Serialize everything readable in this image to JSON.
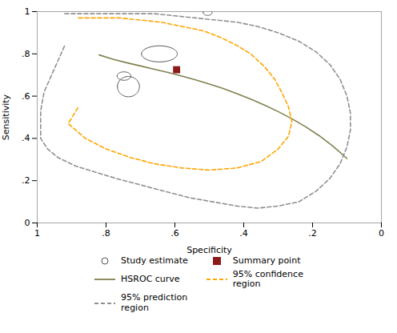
{
  "chart_data": {
    "type": "hsroc",
    "xlabel": "Specificity",
    "ylabel": "Sensitivity",
    "xlim": [
      1.0,
      0.0
    ],
    "ylim": [
      0.0,
      1.0
    ],
    "xticks": [
      1,
      {
        "value": 0.8,
        "label": ".8"
      },
      {
        "value": 0.6,
        "label": ".6"
      },
      {
        "value": 0.4,
        "label": ".4"
      },
      {
        "value": 0.2,
        "label": ".2"
      },
      0
    ],
    "yticks": [
      0,
      {
        "value": 0.2,
        "label": ".2"
      },
      {
        "value": 0.4,
        "label": ".4"
      },
      {
        "value": 0.6,
        "label": ".6"
      },
      {
        "value": 0.8,
        "label": ".8"
      },
      1
    ],
    "grid": false,
    "legend": "bottom",
    "series": [
      {
        "name": "Study estimate",
        "type": "ellipse",
        "marker": "circle",
        "color": "#555555",
        "x": [
          0.505,
          0.645,
          0.735,
          0.748
        ],
        "y": [
          0.995,
          0.8,
          0.645,
          0.695
        ],
        "rx": [
          0.013,
          0.052,
          0.032,
          0.02
        ],
        "ry": [
          0.013,
          0.038,
          0.048,
          0.02
        ]
      },
      {
        "name": "Summary point",
        "type": "scatter",
        "marker": "square",
        "color": "#8B1A1A",
        "x": [
          0.595
        ],
        "y": [
          0.725
        ]
      },
      {
        "name": "HSROC curve",
        "type": "line",
        "line_style": "solid",
        "color": "#808050",
        "x": [
          0.82,
          0.78,
          0.74,
          0.7,
          0.66,
          0.62,
          0.58,
          0.54,
          0.5,
          0.46,
          0.42,
          0.38,
          0.34,
          0.3,
          0.26,
          0.22,
          0.18,
          0.14,
          0.1
        ],
        "y": [
          0.795,
          0.775,
          0.758,
          0.743,
          0.727,
          0.712,
          0.695,
          0.677,
          0.657,
          0.636,
          0.612,
          0.586,
          0.558,
          0.527,
          0.493,
          0.455,
          0.412,
          0.362,
          0.305
        ]
      },
      {
        "name": "95% confidence\nregion",
        "type": "line",
        "line_style": "dashed",
        "color": "#FFA500",
        "x": [
          0.88,
          0.82,
          0.76,
          0.7,
          0.64,
          0.58,
          0.52,
          0.47,
          0.42,
          0.38,
          0.34,
          0.31,
          0.29,
          0.27,
          0.26,
          0.27,
          0.3,
          0.35,
          0.42,
          0.5,
          0.58,
          0.66,
          0.73,
          0.8,
          0.86,
          0.91,
          0.88
        ],
        "y": [
          0.97,
          0.97,
          0.97,
          0.96,
          0.95,
          0.93,
          0.91,
          0.88,
          0.84,
          0.8,
          0.74,
          0.68,
          0.62,
          0.55,
          0.48,
          0.41,
          0.35,
          0.29,
          0.26,
          0.25,
          0.26,
          0.28,
          0.31,
          0.35,
          0.4,
          0.47,
          0.55
        ]
      },
      {
        "name": "95% prediction\nregion",
        "type": "line",
        "line_style": "dashed",
        "color": "#909090",
        "x": [
          0.92,
          0.88,
          0.83,
          0.78,
          0.72,
          0.66,
          0.6,
          0.54,
          0.48,
          0.42,
          0.36,
          0.3,
          0.24,
          0.19,
          0.15,
          0.12,
          0.1,
          0.09,
          0.09,
          0.1,
          0.12,
          0.15,
          0.19,
          0.24,
          0.3,
          0.36,
          0.42,
          0.49,
          0.56,
          0.63,
          0.7,
          0.77,
          0.83,
          0.89,
          0.94,
          0.97,
          0.99,
          0.99,
          0.99,
          0.98,
          0.95,
          0.92
        ],
        "y": [
          0.99,
          0.99,
          0.99,
          0.99,
          0.99,
          0.99,
          0.98,
          0.97,
          0.96,
          0.95,
          0.93,
          0.9,
          0.86,
          0.81,
          0.75,
          0.68,
          0.6,
          0.52,
          0.44,
          0.36,
          0.28,
          0.21,
          0.15,
          0.1,
          0.08,
          0.07,
          0.08,
          0.1,
          0.12,
          0.15,
          0.18,
          0.21,
          0.24,
          0.27,
          0.31,
          0.35,
          0.4,
          0.46,
          0.53,
          0.62,
          0.73,
          0.84
        ]
      }
    ]
  }
}
